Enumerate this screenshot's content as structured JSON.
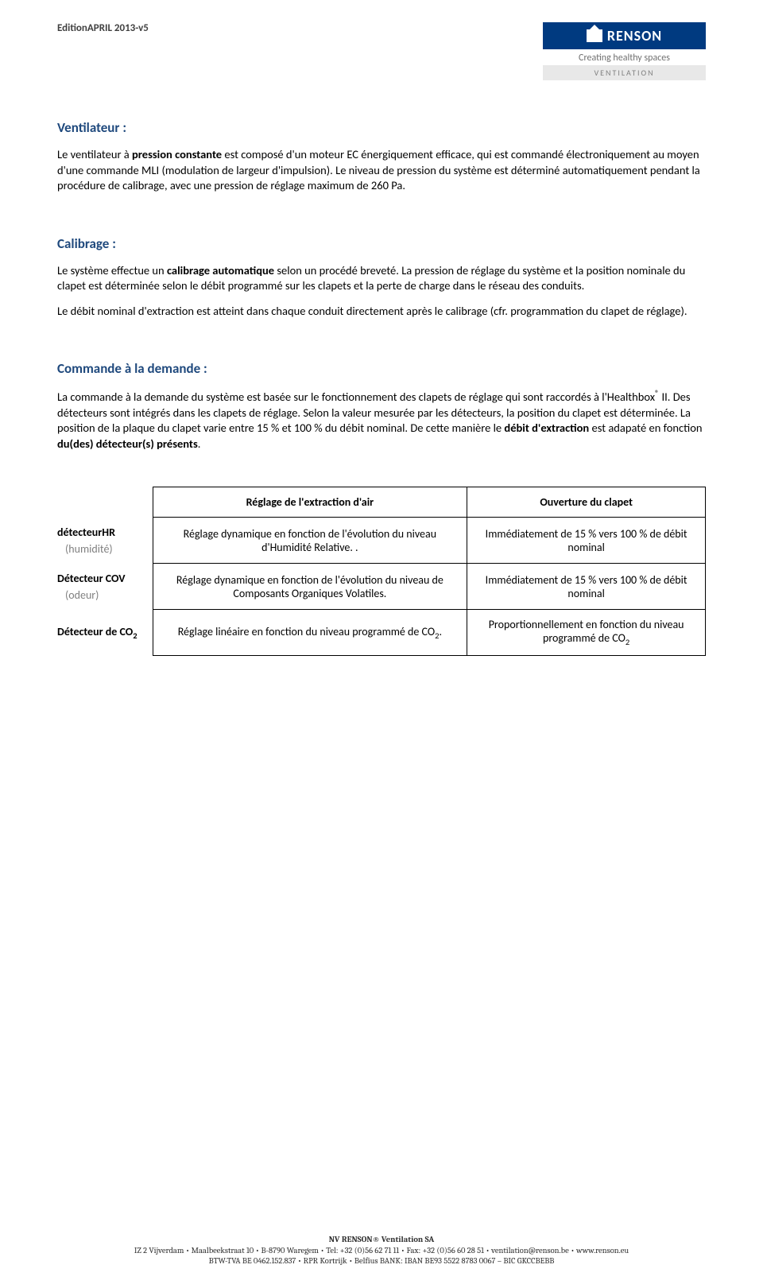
{
  "header": {
    "edition": "EditionAPRIL 2013-v5",
    "brand": "RENSON",
    "tagline": "Creating healthy spaces",
    "subbar": "VENTILATION"
  },
  "sections": {
    "ventilateur": {
      "title": "Ventilateur :",
      "p1_a": "Le ventilateur à ",
      "p1_b": "pression constante",
      "p1_c": " est composé d'un moteur EC énergiquement efficace, qui est commandé électroniquement au moyen d'une commande MLI (modulation de largeur d'impulsion). Le niveau de pression du système est déterminé automatiquement pendant la procédure de calibrage, avec une pression de réglage maximum de 260 Pa."
    },
    "calibrage": {
      "title": "Calibrage :",
      "p1_a": "Le système effectue un ",
      "p1_b": "calibrage automatique",
      "p1_c": " selon un procédé breveté. La pression de réglage du système et la position nominale du clapet est déterminée selon le débit programmé sur les clapets et la perte de charge dans le réseau des conduits.",
      "p2": "Le débit nominal d'extraction est atteint dans chaque conduit directement après le calibrage (cfr. programmation du clapet de réglage)."
    },
    "commande": {
      "title": "Commande à la demande :",
      "p1_a": "La commande à la demande du système est basée sur le fonctionnement des clapets de réglage qui sont raccordés à l'Healthbox",
      "p1_sup": "®",
      "p1_b": " II.  Des détecteurs sont intégrés dans les clapets de réglage.  Selon la valeur mesurée par les détecteurs, la position du clapet est déterminée.  La position de la plaque du clapet varie entre 15 % et 100 % du débit nominal.  De cette manière le ",
      "p1_bold1": "débit d'extraction",
      "p1_c": " est adapaté en fonction ",
      "p1_bold2": "du(des) détecteur(s) présents",
      "p1_d": "."
    }
  },
  "table": {
    "header1": "Réglage de l'extraction d'air",
    "header2": "Ouverture du clapet",
    "rows": [
      {
        "label_main": "détecteurHR",
        "label_sub": "(humidité)",
        "c1": "Réglage dynamique en fonction de l'évolution du niveau d'Humidité Relative. .",
        "c2": "Immédiatement de 15 % vers 100 % de débit nominal"
      },
      {
        "label_main": "Détecteur COV",
        "label_sub": "(odeur)",
        "c1": "Réglage dynamique en fonction de l'évolution du niveau de Composants Organiques Volatiles.",
        "c2": "Immédiatement de 15 % vers 100 % de débit nominal"
      },
      {
        "label_main_a": "Détecteur de CO",
        "label_main_sub": "2",
        "c1_a": "Réglage linéaire en fonction du niveau programmé de CO",
        "c1_sub": "2",
        "c1_b": ".",
        "c2_a": "Proportionnellement en fonction du niveau programmé de CO",
        "c2_sub": "2"
      }
    ]
  },
  "footer": {
    "company": "NV RENSON® Ventilation SA",
    "line2": "IZ 2 Vijverdam • Maalbeekstraat 10 • B-8790 Waregem • Tel: +32 (0)56 62 71 11 • Fax: +32 (0)56 60 28 51 • ventilation@renson.be • www.renson.eu",
    "line3": "BTW-TVA BE 0462.152.837 • RPR Kortrijk • Belfius BANK: IBAN BE93 5522 8783 0067 – BIC GKCCBEBB"
  }
}
